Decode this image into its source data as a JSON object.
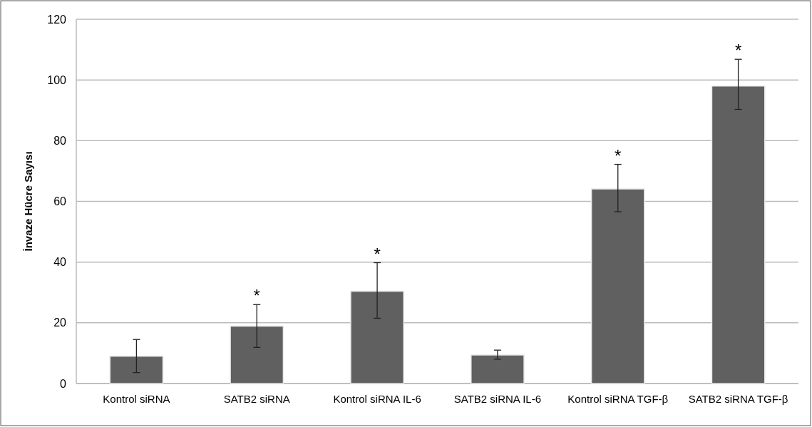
{
  "chart_data": {
    "type": "bar",
    "ylabel": "İnvaze Hücre Sayısı",
    "categories": [
      "Kontrol siRNA",
      "SATB2 siRNA",
      "Kontrol siRNA IL-6",
      "SATB2 siRNA IL-6",
      "Kontrol siRNA TGF-β",
      "SATB2 siRNA TGF-β"
    ],
    "values": [
      9,
      18.9,
      30.4,
      9.4,
      64.1,
      98
    ],
    "errors": [
      [
        3.6,
        14.5
      ],
      [
        11.9,
        26
      ],
      [
        21.5,
        39.8
      ],
      [
        8,
        11
      ],
      [
        56.6,
        72.2
      ],
      [
        90.3,
        106.8
      ]
    ],
    "color": "#606060",
    "ylim": [
      0,
      120
    ],
    "yticks": [
      0,
      20,
      40,
      60,
      80,
      100,
      120
    ],
    "grid": "y",
    "annotations": [
      {
        "text": "*",
        "x": "SATB2 siRNA",
        "y": 26
      },
      {
        "text": "*",
        "x": "Kontrol siRNA IL-6",
        "y": 39.8
      },
      {
        "text": "*",
        "x": "Kontrol siRNA TGF-β",
        "y": 72.2
      },
      {
        "text": "*",
        "x": "SATB2 siRNA TGF-β",
        "y": 106.8
      }
    ]
  }
}
